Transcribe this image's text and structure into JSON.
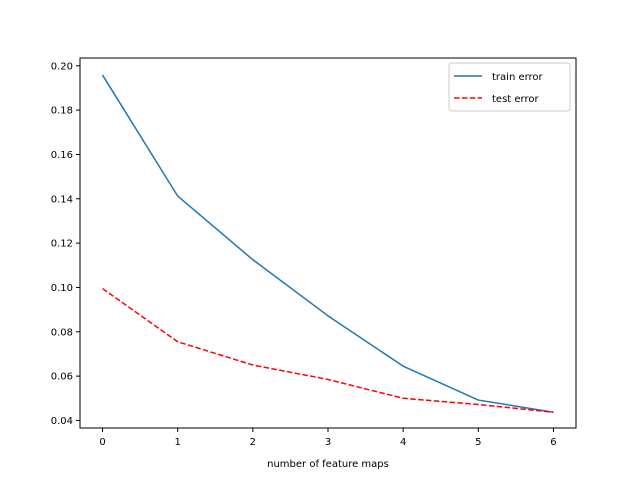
{
  "chart_data": {
    "type": "line",
    "title": "",
    "xlabel": "number of feature maps",
    "ylabel": "",
    "x": [
      0,
      1,
      2,
      3,
      4,
      5,
      6
    ],
    "xlim": [
      -0.3,
      6.3
    ],
    "ylim": [
      0.0366,
      0.2035
    ],
    "xticks": [
      0,
      1,
      2,
      3,
      4,
      5,
      6
    ],
    "xtick_labels": [
      "0",
      "1",
      "2",
      "3",
      "4",
      "5",
      "6"
    ],
    "yticks": [
      0.04,
      0.06,
      0.08,
      0.1,
      0.12,
      0.14,
      0.16,
      0.18,
      0.2
    ],
    "ytick_labels": [
      "0.04",
      "0.06",
      "0.08",
      "0.10",
      "0.12",
      "0.14",
      "0.16",
      "0.18",
      "0.20"
    ],
    "grid": false,
    "legend_position": "top-right",
    "series": [
      {
        "name": "train error",
        "values": [
          0.1958,
          0.1412,
          0.1125,
          0.0872,
          0.0645,
          0.0492,
          0.0437
        ],
        "color": "#1f77b4",
        "style": "solid"
      },
      {
        "name": "test error",
        "values": [
          0.0995,
          0.0755,
          0.065,
          0.0585,
          0.05,
          0.0472,
          0.0437
        ],
        "color": "#ff0000",
        "style": "dashed"
      }
    ]
  }
}
